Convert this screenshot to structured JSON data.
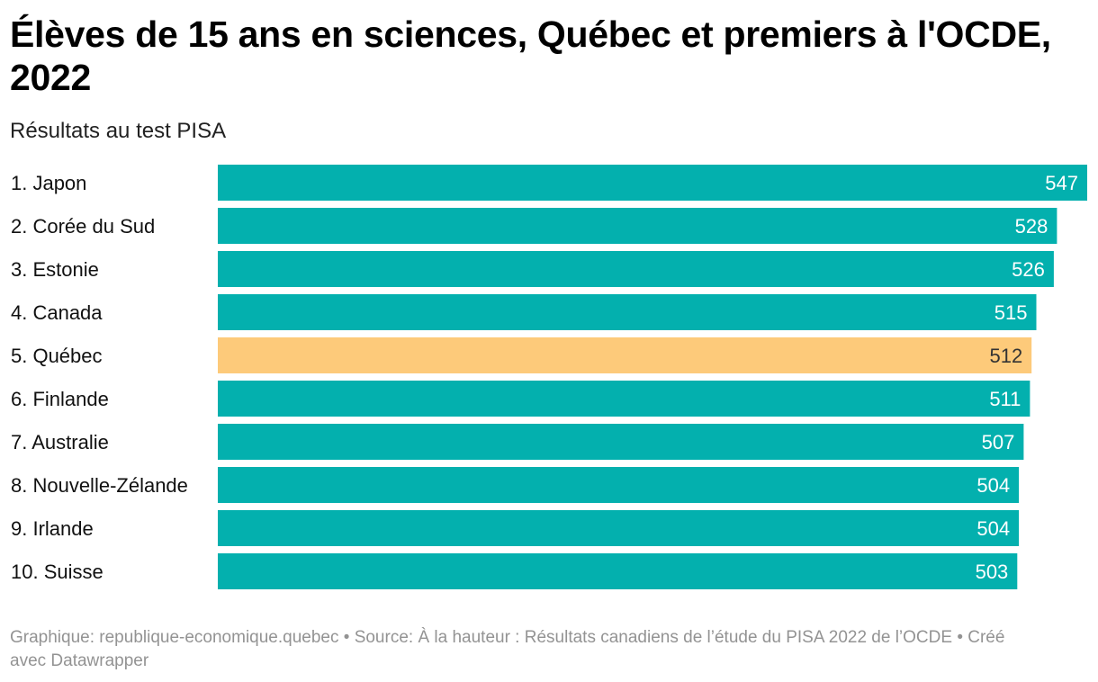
{
  "title": "Élèves de 15 ans en sciences, Québec et premiers à l'OCDE, 2022",
  "subtitle": "Résultats au test PISA",
  "footer": "Graphique: republique-economique.quebec • Source: À la hauteur : Résultats canadiens de l’étude du PISA 2022 de l’OCDE • Créé avec Datawrapper",
  "colors": {
    "bar": "#03b0ae",
    "highlight": "#fdca7a",
    "label_on_bar": "#ffffff",
    "label_on_highlight": "#333333"
  },
  "chart_data": {
    "type": "bar",
    "orientation": "horizontal",
    "categories": [
      "1. Japon",
      "2. Corée du Sud",
      "3. Estonie",
      "4. Canada",
      "5. Québec",
      "6. Finlande",
      "7. Australie",
      "8. Nouvelle-Zélande",
      "9. Irlande",
      "10. Suisse"
    ],
    "values": [
      547,
      528,
      526,
      515,
      512,
      511,
      507,
      504,
      504,
      503
    ],
    "highlighted_category": "5. Québec",
    "xlim": [
      0,
      547
    ],
    "grid": false,
    "data_labels": true
  }
}
